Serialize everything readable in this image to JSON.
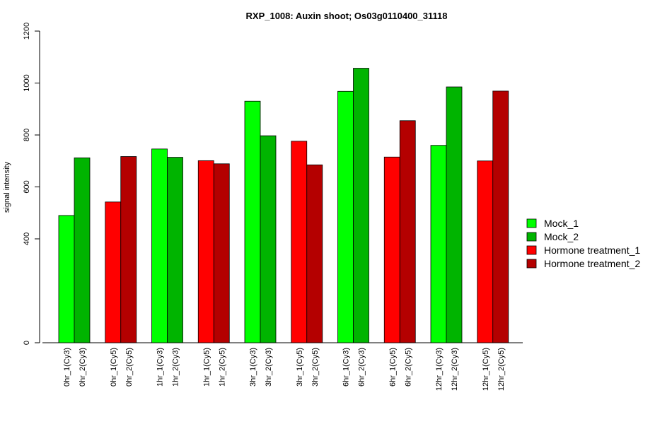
{
  "chart_data": {
    "type": "bar",
    "title": "RXP_1008: Auxin shoot; Os03g0110400_31118",
    "xlabel": "",
    "ylabel": "signal intensity",
    "yticks": [
      "0",
      "400",
      "600",
      "800",
      "1000",
      "1200"
    ],
    "grid": false,
    "legend_position": "right",
    "series": [
      {
        "name": "Mock_1",
        "color": "#00ff00"
      },
      {
        "name": "Mock_2",
        "color": "#00b400"
      },
      {
        "name": "Hormone treatment_1",
        "color": "#ff0000"
      },
      {
        "name": "Hormone treatment_2",
        "color": "#b40000"
      }
    ],
    "bars": [
      {
        "label": "0hr_1(Cy3)",
        "value": 490,
        "series": 0
      },
      {
        "label": "0hr_2(Cy3)",
        "value": 712,
        "series": 1
      },
      {
        "label": "0hr_1(Cy5)",
        "value": 542,
        "series": 2
      },
      {
        "label": "0hr_2(Cy5)",
        "value": 717,
        "series": 3
      },
      {
        "label": "1hr_1(Cy3)",
        "value": 746,
        "series": 0
      },
      {
        "label": "1hr_2(Cy3)",
        "value": 714,
        "series": 1
      },
      {
        "label": "1hr_1(Cy5)",
        "value": 701,
        "series": 2
      },
      {
        "label": "1hr_2(Cy5)",
        "value": 689,
        "series": 3
      },
      {
        "label": "3hr_1(Cy3)",
        "value": 930,
        "series": 0
      },
      {
        "label": "3hr_2(Cy3)",
        "value": 797,
        "series": 1
      },
      {
        "label": "3hr_1(Cy5)",
        "value": 776,
        "series": 2
      },
      {
        "label": "3hr_2(Cy5)",
        "value": 685,
        "series": 3
      },
      {
        "label": "6hr_1(Cy3)",
        "value": 968,
        "series": 0
      },
      {
        "label": "6hr_2(Cy3)",
        "value": 1057,
        "series": 1
      },
      {
        "label": "6hr_1(Cy5)",
        "value": 715,
        "series": 2
      },
      {
        "label": "6hr_2(Cy5)",
        "value": 855,
        "series": 3
      },
      {
        "label": "12hr_1(Cy3)",
        "value": 760,
        "series": 0
      },
      {
        "label": "12hr_2(Cy3)",
        "value": 985,
        "series": 1
      },
      {
        "label": "12hr_1(Cy5)",
        "value": 700,
        "series": 2
      },
      {
        "label": "12hr_2(Cy5)",
        "value": 969,
        "series": 3
      }
    ]
  }
}
